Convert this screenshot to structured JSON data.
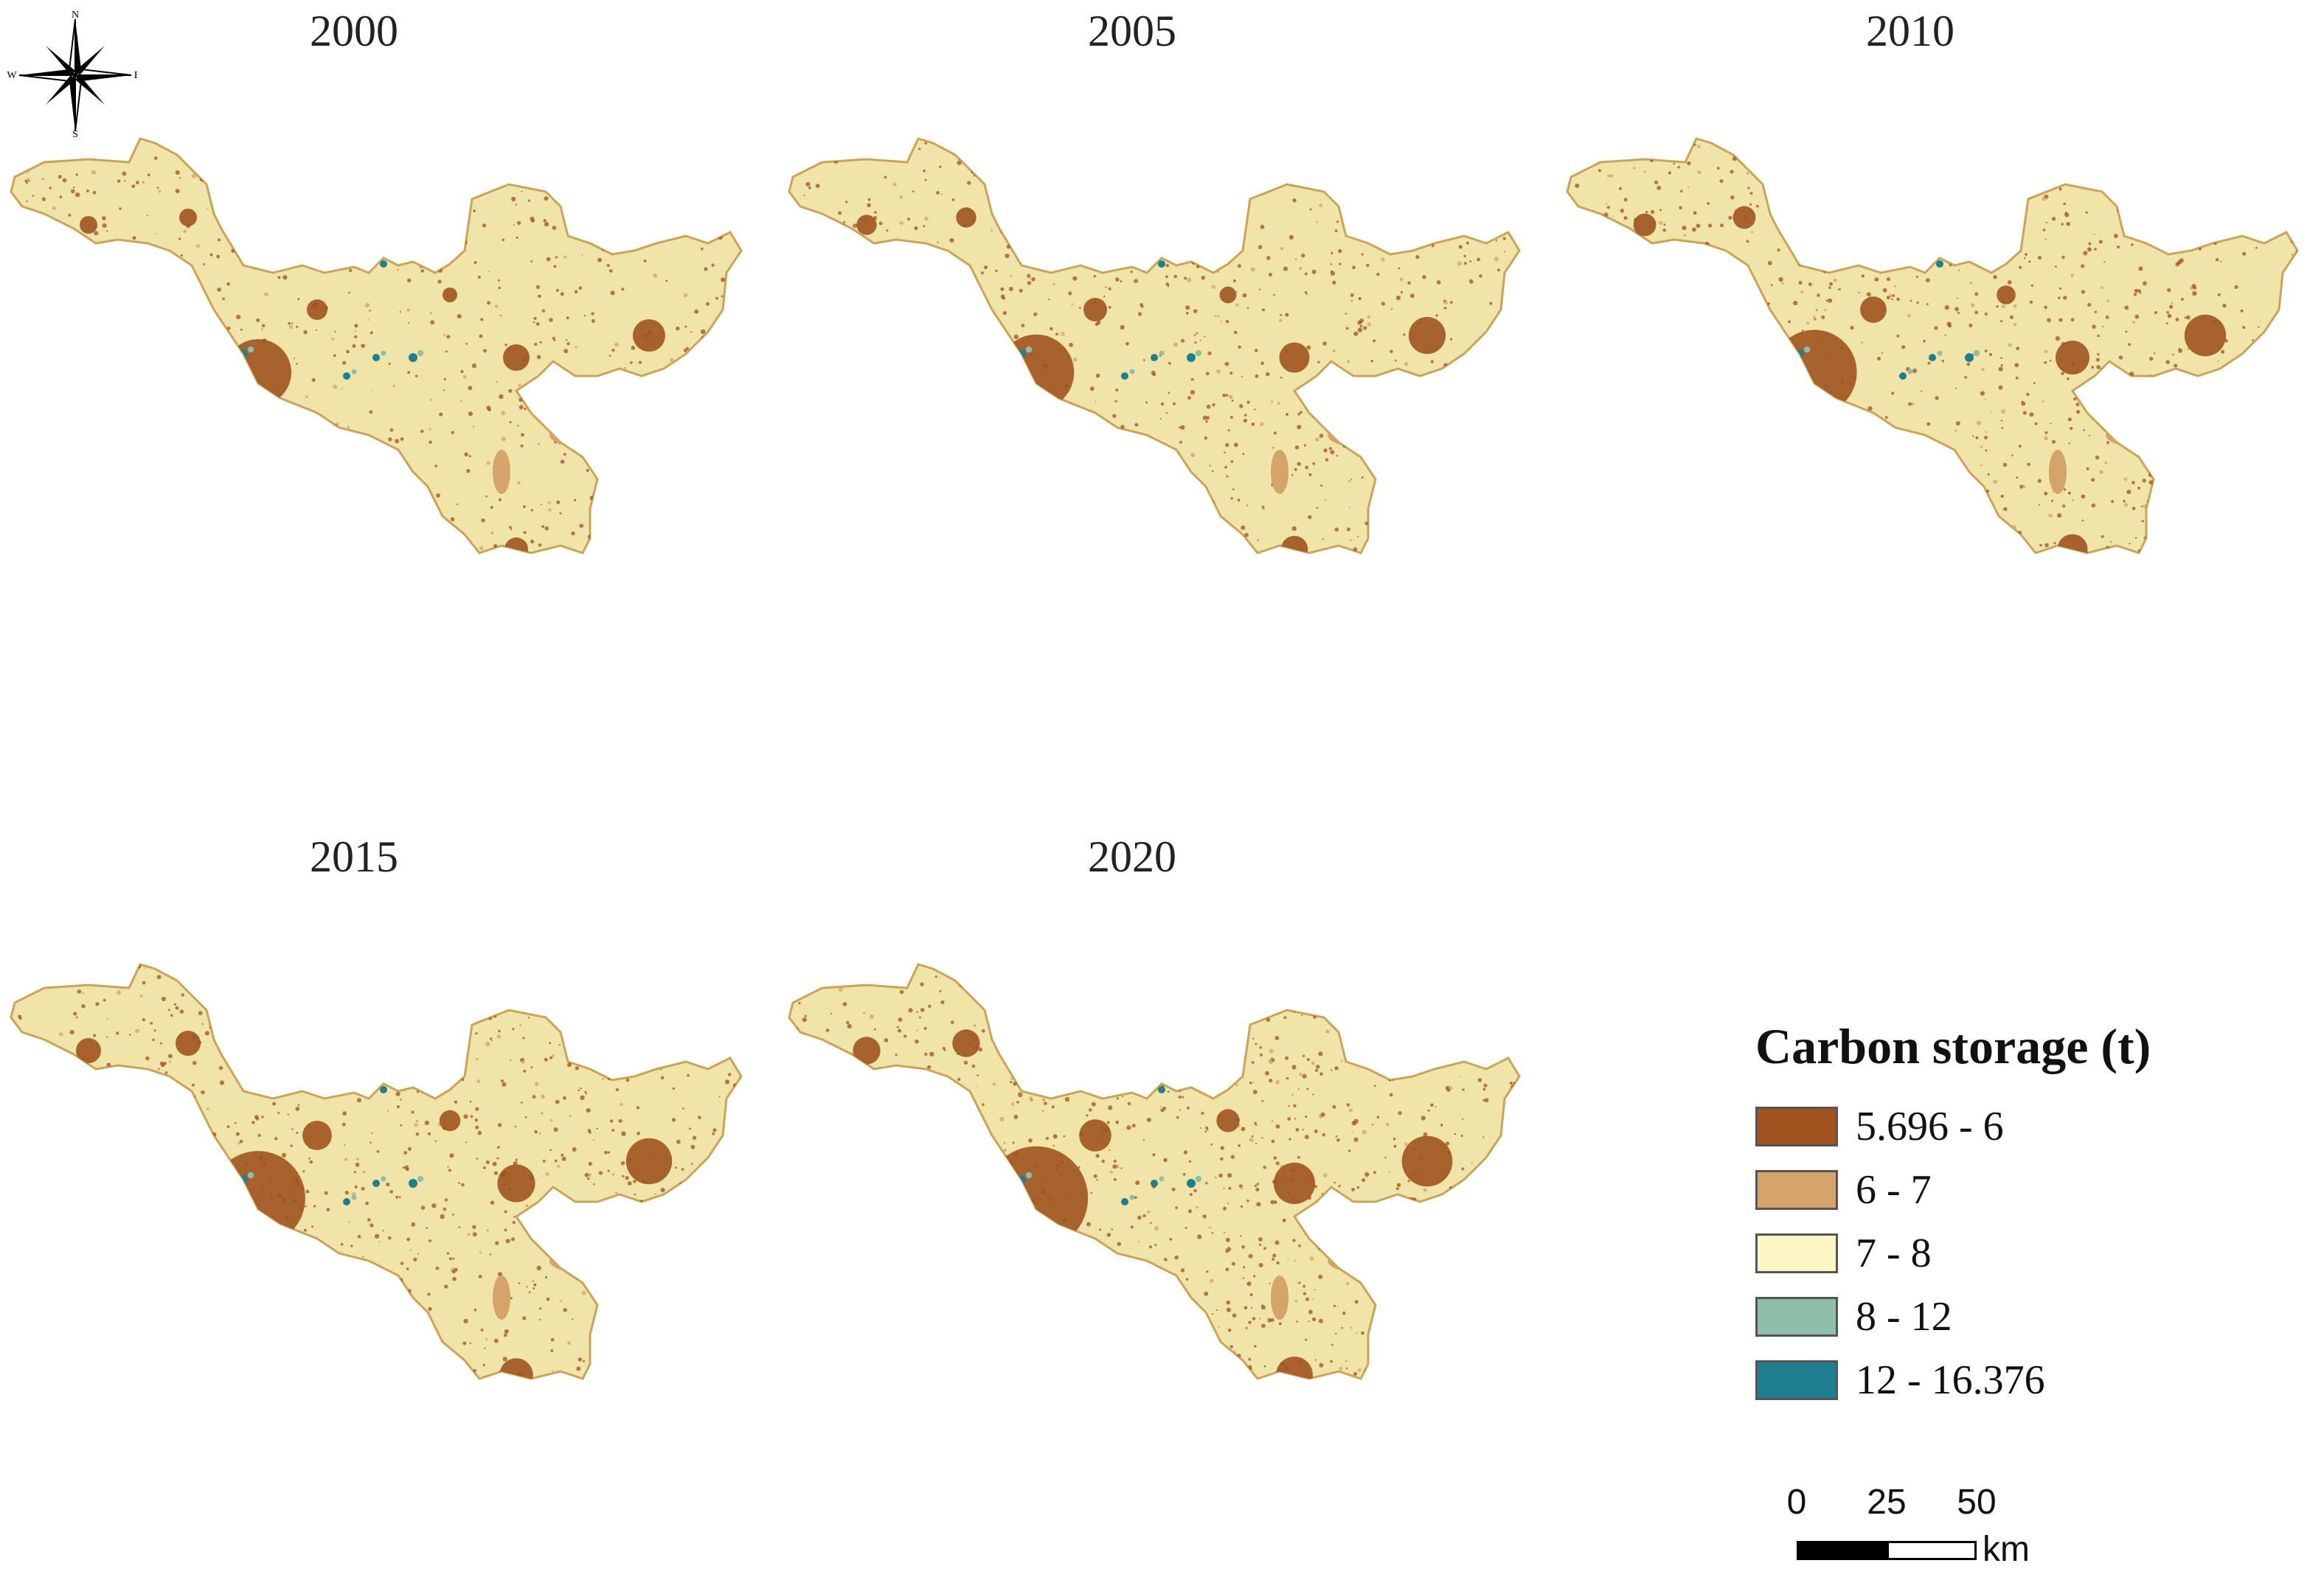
{
  "compass": {
    "n": "N",
    "s": "S",
    "e": "E",
    "w": "W"
  },
  "panels": [
    {
      "year": "2000"
    },
    {
      "year": "2005"
    },
    {
      "year": "2010"
    },
    {
      "year": "2015"
    },
    {
      "year": "2020"
    }
  ],
  "legend": {
    "title": "Carbon storage (t)",
    "classes": [
      {
        "label": "5.696 - 6",
        "color": "#a0531f"
      },
      {
        "label": "6 - 7",
        "color": "#d4a46a"
      },
      {
        "label": "7 - 8",
        "color": "#fbf6c4"
      },
      {
        "label": "8 - 12",
        "color": "#8fbfa8"
      },
      {
        "label": "12 - 16.376",
        "color": "#1f7f91"
      }
    ]
  },
  "scalebar": {
    "ticks": [
      "0",
      "25",
      "50"
    ],
    "unit": "km"
  },
  "colors": {
    "land": "#f1e4a8",
    "urban": "#a0531f",
    "mid": "#d4a46a",
    "water": "#1f7f91",
    "wetland": "#8fbfa8"
  }
}
